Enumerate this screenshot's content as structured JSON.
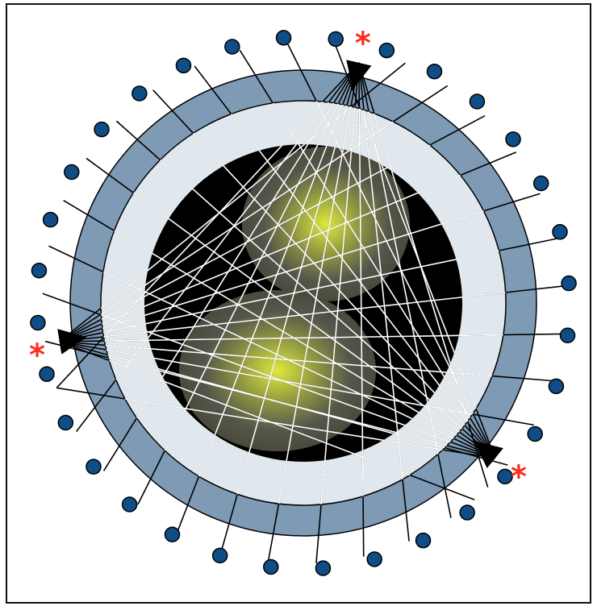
{
  "diagram": {
    "colors": {
      "outer_ring": "#7e9ab4",
      "inner_ring": "#e1e8ed",
      "field": "#000000",
      "glow_center": "#dde83a",
      "glow_edge": "#4a4a3c",
      "rays": "#ffffff",
      "ray_outside": "#000000",
      "detector_fill": "#0f4d86",
      "detector_stroke": "#000000",
      "source": "#000000",
      "source_marker": "#ff2a1a"
    },
    "source_marker_glyph": "*",
    "source_count": 3,
    "detector_count": 32
  }
}
